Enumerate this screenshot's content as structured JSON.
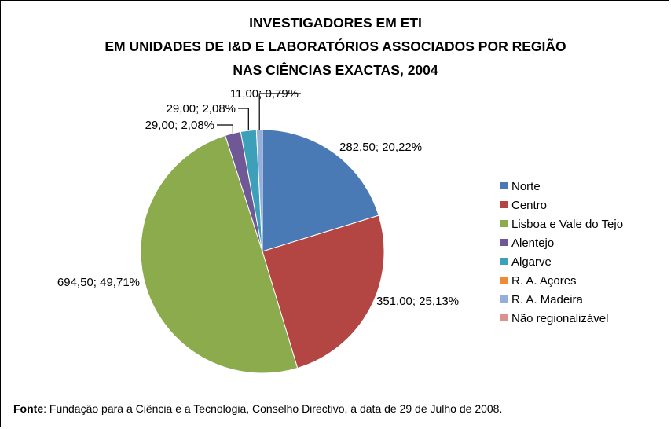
{
  "chart_data": {
    "type": "pie",
    "title_lines": [
      "INVESTIGADORES EM ETI",
      "EM UNIDADES DE I&D E LABORATÓRIOS ASSOCIADOS POR REGIÃO",
      "NAS CIÊNCIAS EXACTAS, 2004"
    ],
    "slices": [
      {
        "name": "Norte",
        "value": 282.5,
        "label": "282,50; 20,22%",
        "color": "#4a7ab5"
      },
      {
        "name": "Centro",
        "value": 351.0,
        "label": "351,00; 25,13%",
        "color": "#b34542"
      },
      {
        "name": "Lisboa e Vale do Tejo",
        "value": 694.5,
        "label": "694,50; 49,71%",
        "color": "#8bab4c"
      },
      {
        "name": "Alentejo",
        "value": 29.0,
        "label": "29,00; 2,08%",
        "color": "#6f5895"
      },
      {
        "name": "Algarve",
        "value": 29.0,
        "label": "29,00; 2,08%",
        "color": "#3ba0b8"
      },
      {
        "name": "R. A. Açores",
        "value": 0,
        "label": "",
        "color": "#ee8b33"
      },
      {
        "name": "R. A. Madeira",
        "value": 11.0,
        "label": "11,00; 0,79%",
        "color": "#95aedb"
      },
      {
        "name": "Não regionalizável",
        "value": 0,
        "label": "",
        "color": "#d8928f"
      }
    ],
    "legend_position": "right"
  },
  "source": {
    "label": "Fonte",
    "text": ": Fundação para a Ciência e a Tecnologia, Conselho Directivo, à data de 29 de Julho de 2008."
  }
}
